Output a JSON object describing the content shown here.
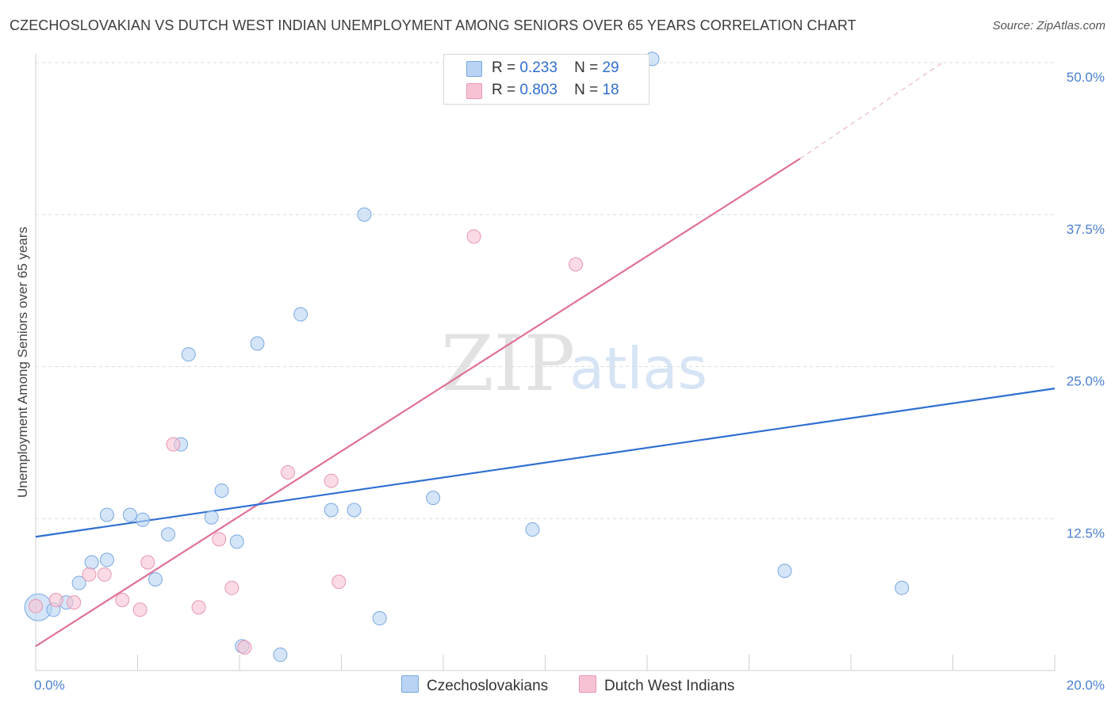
{
  "title": "CZECHOSLOVAKIAN VS DUTCH WEST INDIAN UNEMPLOYMENT AMONG SENIORS OVER 65 YEARS CORRELATION CHART",
  "source": "Source: ZipAtlas.com",
  "watermark": {
    "zip": "ZIP",
    "atlas": "atlas"
  },
  "colors": {
    "blue_fill": "#b8d3f3",
    "blue_stroke": "#7aa8e0",
    "blue_line": "#2f6fd0",
    "pink_fill": "#f7c3d4",
    "pink_stroke": "#e896b0",
    "pink_line": "#e0709a",
    "grid": "#dcdcdc",
    "tick_text": "#4a7fcf"
  },
  "legend": {
    "rows": [
      {
        "r_label": "R =",
        "r_value": "0.233",
        "n_label": "N =",
        "n_value": "29"
      },
      {
        "r_label": "R =",
        "r_value": "0.803",
        "n_label": "N =",
        "n_value": "18"
      }
    ]
  },
  "bottom_legend": {
    "czech": "Czechoslovakians",
    "dutch": "Dutch West Indians"
  },
  "chart_data": {
    "type": "scatter",
    "title": "CZECHOSLOVAKIAN VS DUTCH WEST INDIAN UNEMPLOYMENT AMONG SENIORS OVER 65 YEARS CORRELATION CHART",
    "xlabel": "",
    "ylabel": "Unemployment Among Seniors over 65 years",
    "xlim": [
      0,
      20
    ],
    "ylim": [
      0,
      50
    ],
    "x_tick_labels": [
      "0.0%",
      "20.0%"
    ],
    "y_ticks": [
      12.5,
      25.0,
      37.5,
      50.0
    ],
    "y_tick_labels": [
      "12.5%",
      "25.0%",
      "37.5%",
      "50.0%"
    ],
    "series": [
      {
        "name": "Czechoslovakians",
        "r": 0.233,
        "n": 29,
        "points": [
          {
            "x": 0.05,
            "y": 5.2,
            "big": true
          },
          {
            "x": 0.35,
            "y": 5.0
          },
          {
            "x": 0.6,
            "y": 5.6
          },
          {
            "x": 0.85,
            "y": 7.2
          },
          {
            "x": 1.1,
            "y": 8.9
          },
          {
            "x": 1.4,
            "y": 9.1
          },
          {
            "x": 1.4,
            "y": 12.8
          },
          {
            "x": 1.85,
            "y": 12.8
          },
          {
            "x": 2.1,
            "y": 12.4
          },
          {
            "x": 2.35,
            "y": 7.5
          },
          {
            "x": 2.6,
            "y": 11.2
          },
          {
            "x": 2.85,
            "y": 18.6
          },
          {
            "x": 3.0,
            "y": 26.0
          },
          {
            "x": 3.45,
            "y": 12.6
          },
          {
            "x": 3.65,
            "y": 14.8
          },
          {
            "x": 3.95,
            "y": 10.6
          },
          {
            "x": 4.05,
            "y": 2.0
          },
          {
            "x": 4.35,
            "y": 26.9
          },
          {
            "x": 4.8,
            "y": 1.3
          },
          {
            "x": 5.2,
            "y": 29.3
          },
          {
            "x": 5.8,
            "y": 13.2
          },
          {
            "x": 6.25,
            "y": 13.2
          },
          {
            "x": 6.45,
            "y": 37.5
          },
          {
            "x": 6.75,
            "y": 4.3
          },
          {
            "x": 7.8,
            "y": 14.2
          },
          {
            "x": 9.75,
            "y": 11.6
          },
          {
            "x": 12.1,
            "y": 50.3
          },
          {
            "x": 14.7,
            "y": 8.2
          },
          {
            "x": 17.0,
            "y": 6.8
          }
        ],
        "trend": {
          "x0": 0,
          "y0": 11.0,
          "x1": 20,
          "y1": 23.2
        }
      },
      {
        "name": "Dutch West Indians",
        "r": 0.803,
        "n": 18,
        "points": [
          {
            "x": 0.0,
            "y": 5.3
          },
          {
            "x": 0.4,
            "y": 5.8
          },
          {
            "x": 0.75,
            "y": 5.6
          },
          {
            "x": 1.05,
            "y": 7.9
          },
          {
            "x": 1.35,
            "y": 7.9
          },
          {
            "x": 1.7,
            "y": 5.8
          },
          {
            "x": 2.05,
            "y": 5.0
          },
          {
            "x": 2.2,
            "y": 8.9
          },
          {
            "x": 2.7,
            "y": 18.6
          },
          {
            "x": 3.2,
            "y": 5.2
          },
          {
            "x": 3.6,
            "y": 10.8
          },
          {
            "x": 3.85,
            "y": 6.8
          },
          {
            "x": 4.1,
            "y": 1.9
          },
          {
            "x": 4.95,
            "y": 16.3
          },
          {
            "x": 5.8,
            "y": 15.6
          },
          {
            "x": 5.95,
            "y": 7.3
          },
          {
            "x": 8.6,
            "y": 35.7
          },
          {
            "x": 10.6,
            "y": 33.4
          }
        ],
        "trend": {
          "x0": 0,
          "y0": 2.0,
          "x1": 15.0,
          "y1": 42.1
        },
        "trend_dashed_extension": {
          "x0": 15.0,
          "y0": 42.1,
          "x1": 17.8,
          "y1": 50.0
        }
      }
    ]
  }
}
